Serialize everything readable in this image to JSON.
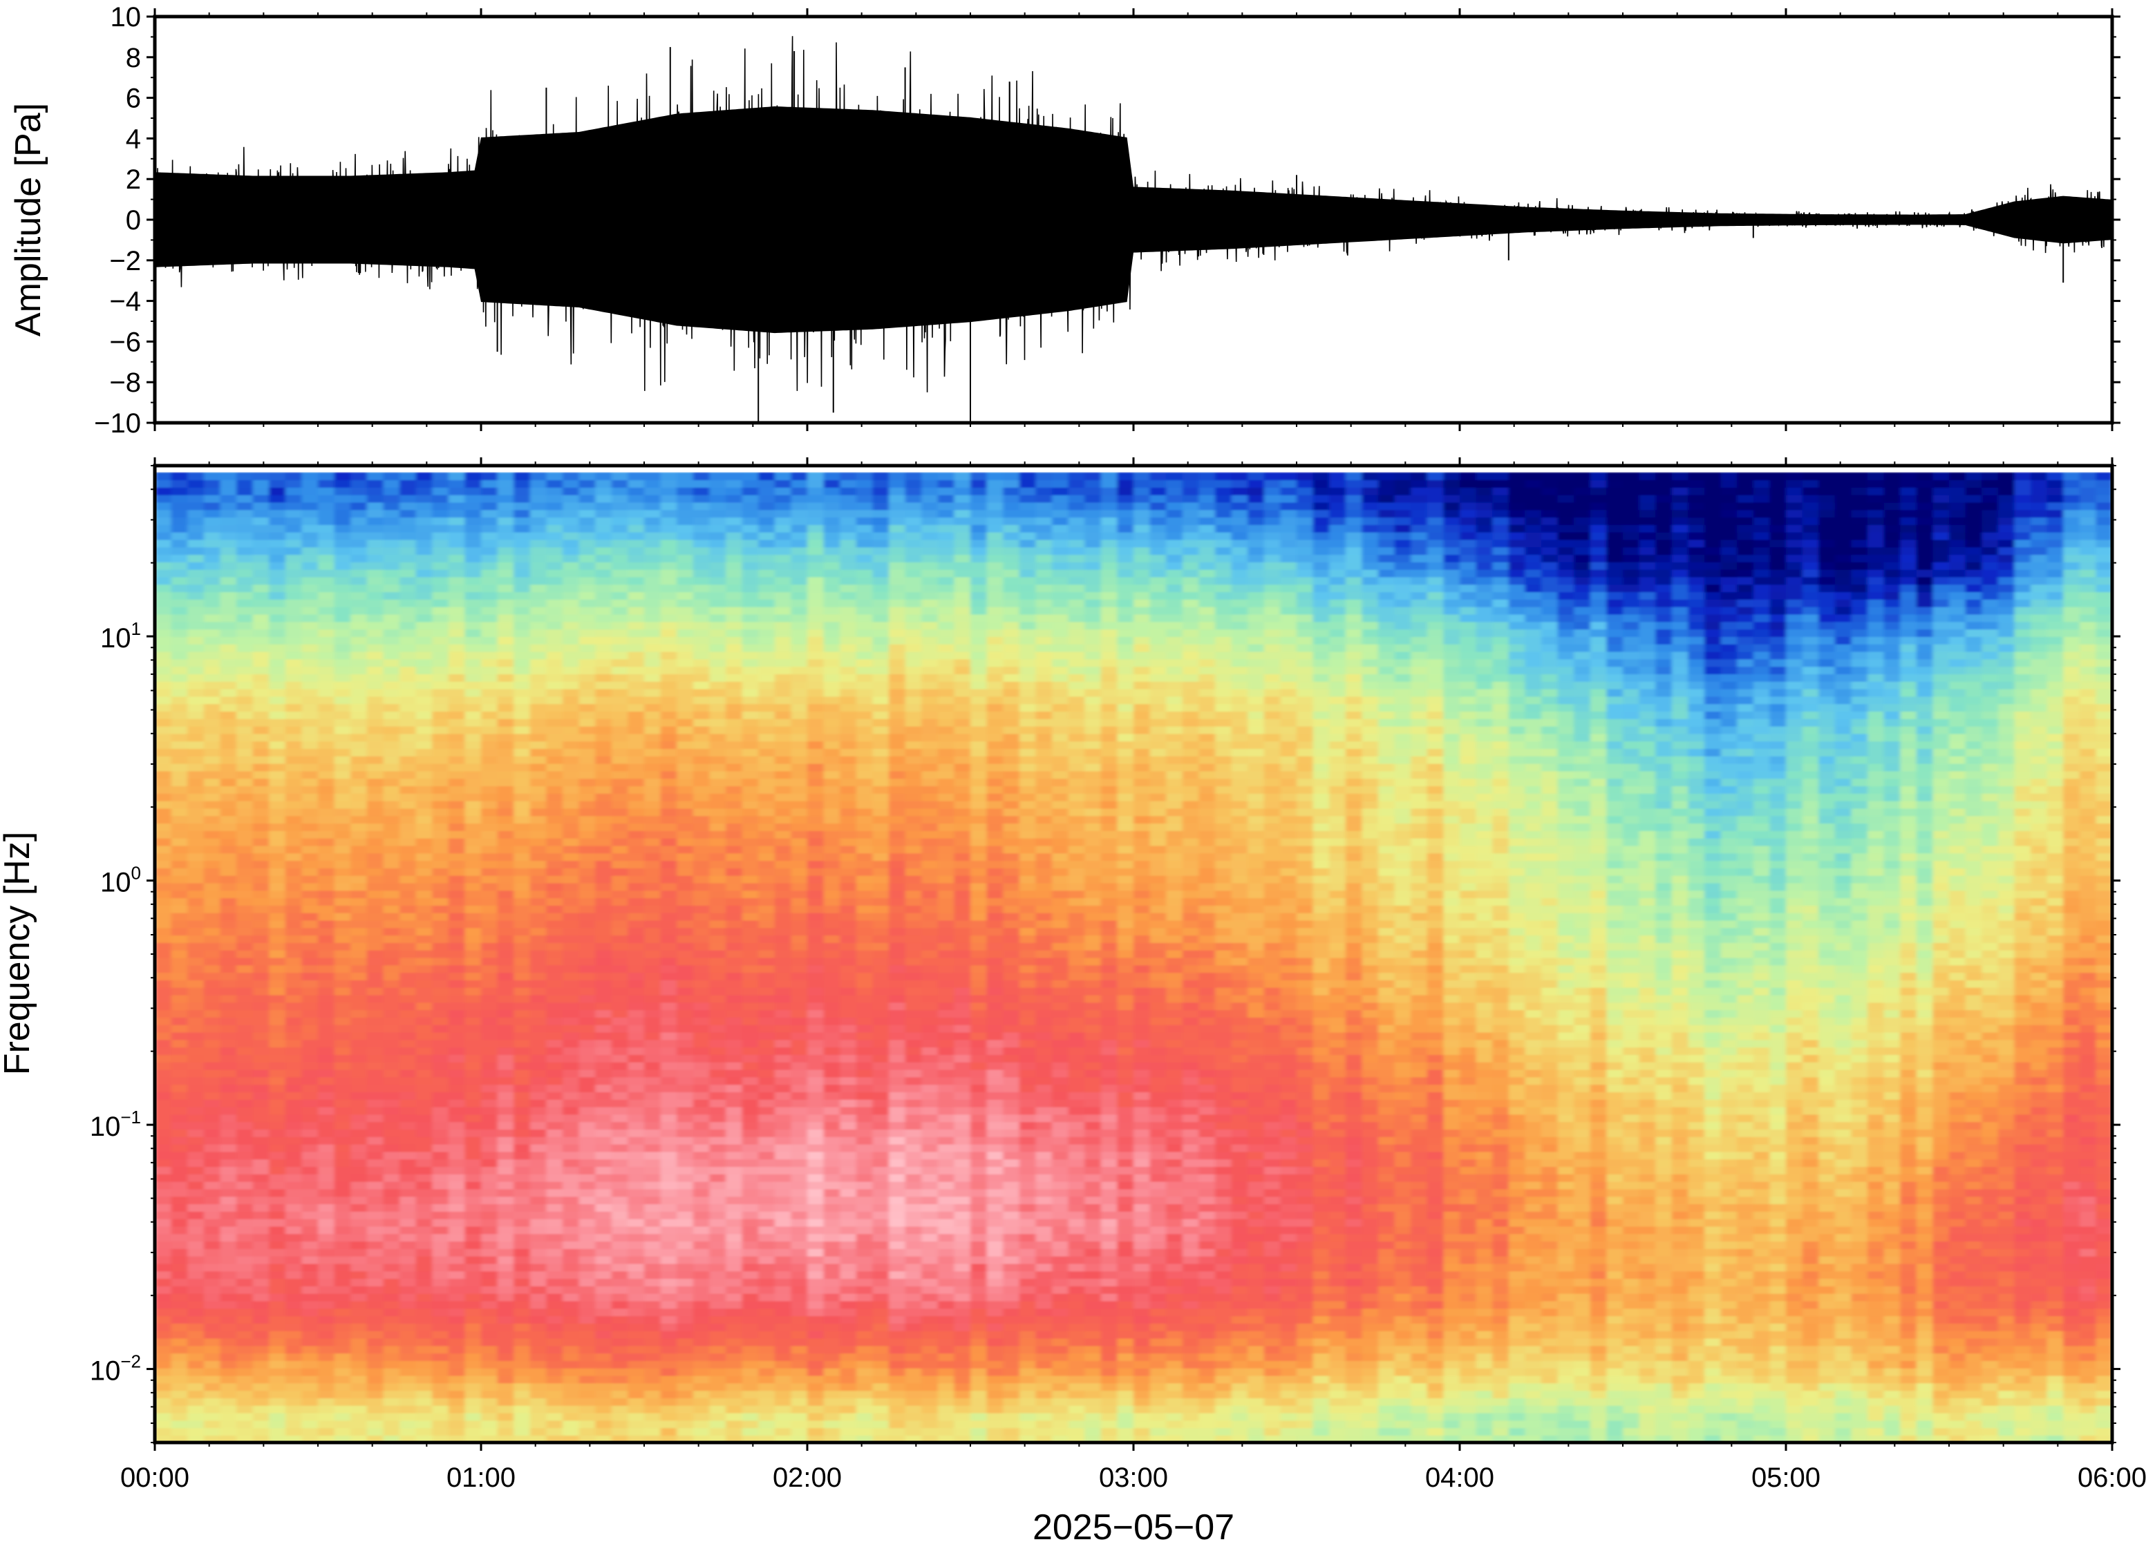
{
  "chart_data": [
    {
      "type": "line",
      "panel": "waveform",
      "title": "",
      "ylabel": "Amplitude [Pa]",
      "ylim": [
        -10,
        10
      ],
      "yticks": [
        10,
        8,
        6,
        4,
        2,
        0,
        -2,
        -4,
        -6,
        -8,
        -10
      ],
      "ytick_labels": [
        "10",
        "8",
        "6",
        "4",
        "2",
        "0",
        "−2",
        "−4",
        "−6",
        "−8",
        "−10"
      ],
      "xlim_hours": [
        0,
        6
      ],
      "envelope": {
        "time_hours": [
          0.0,
          0.3,
          0.6,
          0.9,
          0.98,
          1.0,
          1.3,
          1.6,
          1.9,
          2.2,
          2.5,
          2.8,
          2.98,
          3.0,
          3.3,
          3.6,
          3.9,
          4.2,
          4.5,
          4.8,
          5.1,
          5.4,
          5.55,
          5.7,
          5.85,
          6.0
        ],
        "amplitude_pa": [
          2.6,
          2.4,
          2.4,
          2.6,
          2.7,
          4.5,
          4.8,
          5.8,
          6.2,
          6.0,
          5.6,
          5.0,
          4.5,
          1.8,
          1.6,
          1.3,
          1.0,
          0.7,
          0.5,
          0.35,
          0.3,
          0.28,
          0.3,
          1.0,
          1.3,
          1.1
        ]
      },
      "peaks": {
        "time_hours": [
          1.05,
          1.2,
          1.58,
          1.85,
          1.96,
          2.08,
          2.3,
          2.5,
          2.62,
          3.5,
          4.15,
          4.9,
          5.85
        ],
        "amplitude_pa": [
          -6.5,
          6.5,
          8.5,
          -10.0,
          8.3,
          -9.5,
          7.5,
          -10.0,
          6.8,
          2.2,
          -2.0,
          -0.9,
          -3.1
        ]
      }
    },
    {
      "type": "heatmap",
      "panel": "spectrogram",
      "title": "",
      "ylabel": "Frequency [Hz]",
      "yscale": "log",
      "ylim": [
        0.005,
        50
      ],
      "yticks": [
        0.01,
        0.1,
        1,
        10
      ],
      "ytick_labels": [
        {
          "base": "10",
          "exp": "−2"
        },
        {
          "base": "10",
          "exp": "−1"
        },
        {
          "base": "10",
          "exp": "0"
        },
        {
          "base": "10",
          "exp": "1"
        }
      ],
      "colormap": [
        "#000070",
        "#0a28c8",
        "#2f8ae8",
        "#5cc4f0",
        "#86e4c4",
        "#bff3a6",
        "#ecef86",
        "#f8c45e",
        "#fc9a46",
        "#f86a50",
        "#f6565c",
        "#fa8a94",
        "#ffc0c8"
      ],
      "rows_log10_freq": [
        -2.2,
        -2.0,
        -1.7,
        -1.4,
        -1.1,
        -0.8,
        -0.5,
        -0.2,
        0.1,
        0.4,
        0.7,
        1.0,
        1.3,
        1.6
      ],
      "columns_time_hours": [
        0.0,
        0.5,
        1.0,
        1.5,
        2.0,
        2.5,
        3.0,
        3.5,
        4.0,
        4.3,
        4.6,
        4.8,
        5.0,
        5.3,
        5.6,
        5.8,
        6.0
      ],
      "level_grid": [
        [
          6.0,
          6.0,
          6.2,
          6.4,
          6.4,
          6.2,
          5.8,
          5.6,
          5.2,
          5.0,
          5.2,
          4.8,
          5.2,
          5.4,
          6.0,
          5.4,
          5.8
        ],
        [
          7.6,
          7.8,
          8.2,
          8.4,
          8.4,
          8.2,
          8.0,
          7.4,
          7.0,
          6.8,
          6.6,
          6.6,
          6.8,
          7.0,
          7.6,
          7.4,
          7.4
        ],
        [
          10.0,
          10.1,
          10.2,
          10.6,
          10.8,
          10.6,
          10.0,
          9.2,
          8.6,
          8.0,
          7.6,
          7.2,
          7.6,
          8.0,
          9.2,
          9.6,
          9.6
        ],
        [
          10.4,
          10.6,
          10.8,
          11.2,
          11.6,
          11.4,
          10.8,
          9.8,
          9.0,
          8.2,
          7.6,
          7.2,
          7.4,
          7.8,
          9.0,
          9.8,
          9.8
        ],
        [
          10.0,
          10.2,
          10.4,
          11.0,
          11.4,
          11.2,
          10.6,
          9.6,
          8.8,
          7.8,
          7.0,
          6.6,
          6.8,
          7.2,
          8.4,
          9.4,
          9.4
        ],
        [
          9.2,
          9.4,
          9.8,
          10.2,
          10.6,
          10.4,
          9.8,
          9.0,
          8.2,
          7.2,
          6.6,
          6.0,
          6.4,
          6.6,
          7.6,
          8.6,
          8.8
        ],
        [
          8.8,
          9.0,
          9.4,
          9.8,
          10.0,
          9.6,
          9.0,
          8.2,
          7.4,
          6.6,
          5.8,
          5.2,
          5.6,
          6.0,
          6.8,
          7.8,
          8.2
        ],
        [
          8.2,
          8.4,
          8.6,
          9.0,
          9.2,
          8.8,
          8.0,
          7.4,
          6.8,
          6.0,
          5.2,
          4.6,
          5.0,
          5.2,
          6.0,
          7.0,
          7.6
        ],
        [
          7.8,
          7.8,
          8.0,
          8.4,
          8.6,
          8.2,
          7.4,
          6.8,
          6.4,
          5.8,
          4.6,
          4.0,
          4.4,
          4.6,
          5.4,
          6.6,
          7.0
        ],
        [
          7.2,
          7.2,
          7.4,
          7.8,
          8.0,
          7.6,
          7.0,
          6.6,
          6.2,
          5.4,
          4.0,
          3.2,
          3.8,
          4.0,
          4.8,
          6.2,
          6.6
        ],
        [
          6.4,
          6.4,
          6.6,
          7.0,
          7.2,
          7.0,
          6.4,
          6.0,
          5.4,
          4.4,
          3.2,
          2.4,
          3.0,
          3.4,
          4.2,
          5.6,
          6.0
        ],
        [
          4.8,
          5.0,
          5.2,
          5.4,
          5.6,
          5.4,
          5.2,
          4.8,
          4.2,
          3.0,
          2.0,
          1.2,
          1.8,
          2.0,
          2.8,
          4.4,
          4.6
        ],
        [
          3.2,
          3.4,
          3.6,
          3.8,
          4.0,
          3.8,
          3.4,
          2.8,
          2.0,
          1.0,
          0.4,
          0.2,
          0.2,
          0.2,
          0.4,
          2.6,
          3.0
        ],
        [
          1.4,
          1.6,
          1.8,
          1.9,
          2.0,
          1.8,
          1.4,
          1.0,
          0.6,
          0.2,
          0.0,
          0.0,
          0.0,
          0.0,
          0.0,
          1.0,
          1.4
        ]
      ]
    }
  ],
  "shared_x_axis": {
    "xlabel": "2025−05−07",
    "ticks_hours": [
      0,
      1,
      2,
      3,
      4,
      5,
      6
    ],
    "tick_labels": [
      "00:00",
      "01:00",
      "02:00",
      "03:00",
      "04:00",
      "05:00",
      "06:00"
    ]
  },
  "colors": {
    "frame": "#000000",
    "trace": "#000000",
    "background": "#ffffff"
  }
}
